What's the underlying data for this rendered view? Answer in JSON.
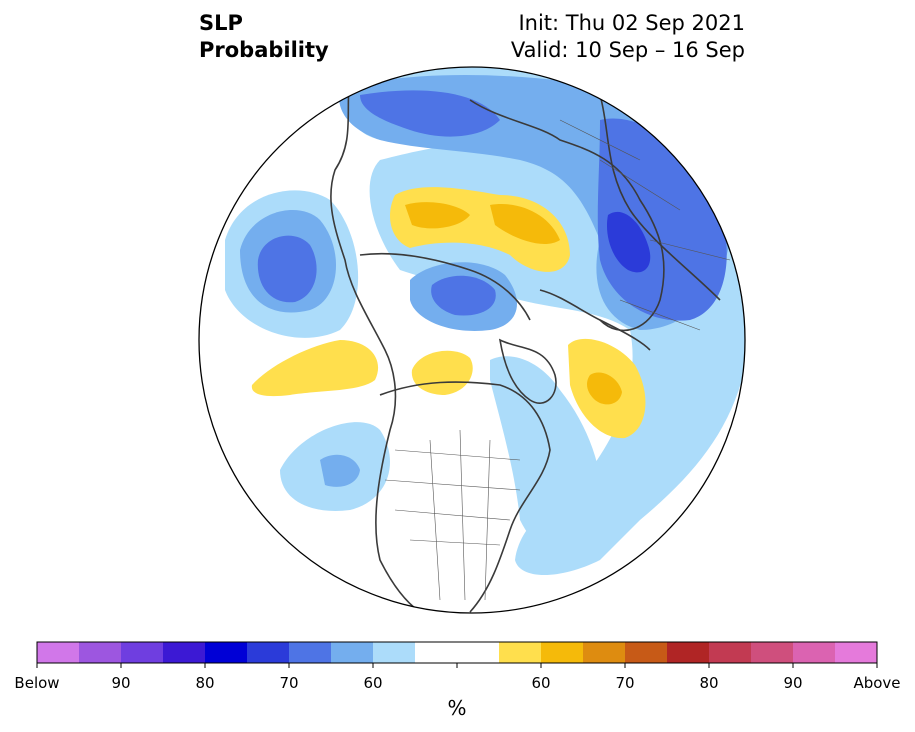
{
  "title": {
    "line1": "SLP",
    "line2": "Probability",
    "init": "Init: Thu 02 Sep 2021",
    "valid": "Valid: 10 Sep – 16 Sep"
  },
  "colorbar": {
    "colors": [
      "#d177e9",
      "#9d56e0",
      "#6f3ee0",
      "#3c19d4",
      "#0000d6",
      "#2b3bd9",
      "#4e74e5",
      "#74aeee",
      "#acdcfa",
      "#ffffff",
      "#ffffff",
      "#ffdf4d",
      "#f5ba0a",
      "#de8c10",
      "#c75a17",
      "#b02525",
      "#c23a52",
      "#cf4f7d",
      "#db63b1",
      "#e57adb"
    ],
    "labels": [
      "Below",
      "90",
      "80",
      "70",
      "60",
      "60",
      "70",
      "80",
      "90",
      "Above"
    ],
    "unit": "%"
  },
  "legend_colors": {
    "below_light": "#acdcfa",
    "below_mid": "#74aeee",
    "below_strong": "#4e74e5",
    "below_stronger": "#2b3bd9",
    "above_light": "#ffdf4d",
    "above_mid": "#f5ba0a",
    "coast": "#3a3a3a"
  }
}
